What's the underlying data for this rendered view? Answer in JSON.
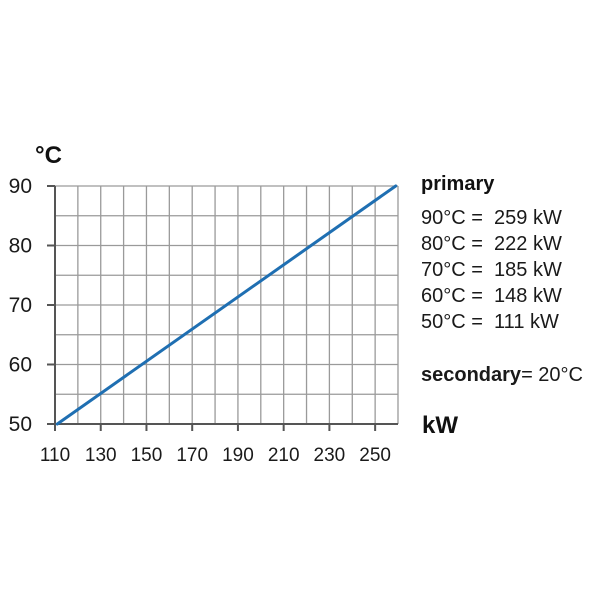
{
  "chart_data": {
    "type": "line",
    "xlabel": "kW",
    "ylabel": "°C",
    "xlim": [
      110,
      260
    ],
    "ylim": [
      50,
      90
    ],
    "x_ticks": [
      "110",
      "130",
      "150",
      "170",
      "190",
      "210",
      "230",
      "250"
    ],
    "y_ticks": [
      "50",
      "60",
      "70",
      "80",
      "90"
    ],
    "grid": true,
    "series": [
      {
        "x": [
          111,
          259
        ],
        "y": [
          50,
          90
        ],
        "color": "#1f6fb2"
      }
    ],
    "legend": {
      "title": "primary",
      "entries": [
        "90°C =  259 kW",
        "80°C =  222 kW",
        "70°C =  185 kW",
        "60°C =  148 kW",
        "50°C =  111 kW"
      ],
      "secondary_label": "secondary",
      "secondary_value": "= 20°C"
    }
  }
}
